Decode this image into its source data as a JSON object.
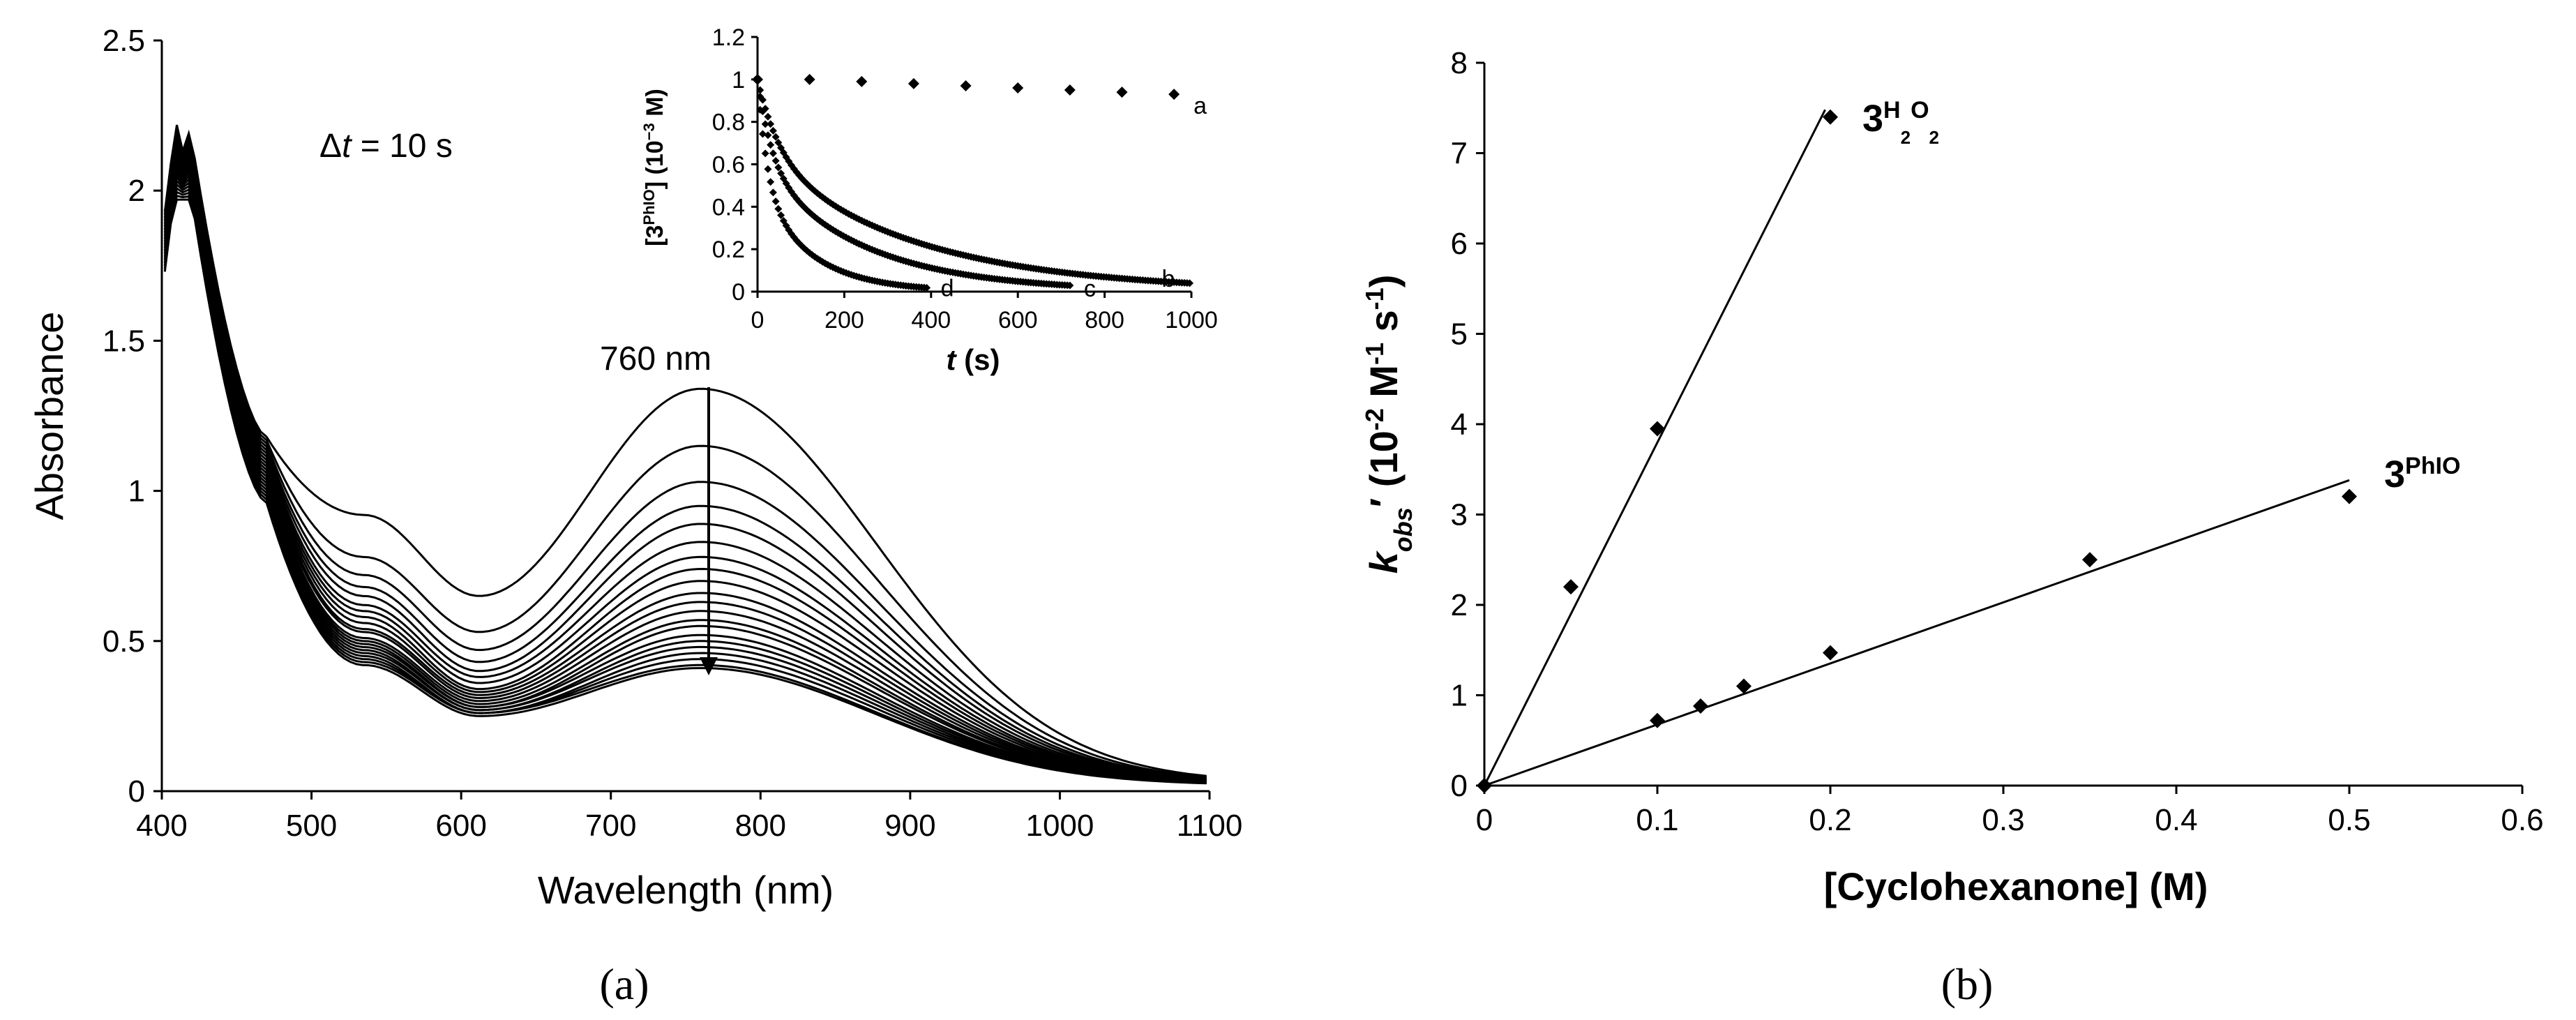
{
  "panel_labels": {
    "a": "(a)",
    "b": "(b)"
  },
  "chart_data": [
    {
      "id": "a-main",
      "type": "line",
      "xlabel": "Wavelength (nm)",
      "ylabel": "Absorbance",
      "xlim": [
        400,
        1100
      ],
      "ylim": [
        0,
        2.5
      ],
      "xticks": [
        400,
        500,
        600,
        700,
        800,
        900,
        1000,
        1100
      ],
      "yticks": [
        0,
        0.5,
        1,
        1.5,
        2,
        2.5
      ],
      "ytick_labels": [
        "0",
        "0.5",
        "1",
        "1.5",
        "2",
        "2.5"
      ],
      "annotations": {
        "dt_prefix": "Δ",
        "dt_italic": "t",
        "dt_suffix": " = 10 s",
        "peak": "760 nm"
      },
      "peak_wavelength": 760,
      "series_peak_values": [
        1.34,
        1.15,
        1.03,
        0.95,
        0.89,
        0.83,
        0.78,
        0.74,
        0.7,
        0.66,
        0.63,
        0.6,
        0.57,
        0.55,
        0.52,
        0.5,
        0.48,
        0.46,
        0.44,
        0.42,
        0.41
      ],
      "series_min_values": [
        0.65,
        0.53,
        0.47,
        0.43,
        0.4,
        0.38,
        0.36,
        0.34,
        0.33,
        0.32,
        0.31,
        0.3,
        0.29,
        0.28,
        0.28,
        0.27,
        0.27,
        0.26,
        0.26,
        0.26,
        0.25
      ],
      "series_shoulder_values": [
        0.92,
        0.78,
        0.72,
        0.68,
        0.65,
        0.62,
        0.6,
        0.58,
        0.56,
        0.54,
        0.53,
        0.51,
        0.5,
        0.49,
        0.48,
        0.47,
        0.46,
        0.45,
        0.44,
        0.43,
        0.42
      ]
    },
    {
      "id": "a-inset",
      "type": "scatter",
      "xlabel_italic": "t",
      "xlabel_rest": " (s)",
      "ylabel_parts": {
        "open": "[3",
        "sup": "PhIO",
        "mid": "] (10",
        "exp": "−3",
        "close": " M)"
      },
      "xlim": [
        0,
        1000
      ],
      "ylim": [
        0,
        1.2
      ],
      "xticks": [
        0,
        200,
        400,
        600,
        800,
        1000
      ],
      "yticks": [
        0,
        0.2,
        0.4,
        0.6,
        0.8,
        1,
        1.2
      ],
      "ytick_labels": [
        "0",
        "0.2",
        "0.4",
        "0.6",
        "0.8",
        "1",
        "1.2"
      ],
      "series": [
        {
          "name": "a",
          "x": [
            0,
            120,
            240,
            360,
            480,
            600,
            720,
            840,
            960
          ],
          "y": [
            1.0,
            1.0,
            0.99,
            0.98,
            0.97,
            0.96,
            0.95,
            0.94,
            0.93
          ]
        },
        {
          "name": "b",
          "tmax": 1000,
          "y0": 1.0,
          "fast": 0.35,
          "kfast": 0.02,
          "slow": 0.65,
          "kslow": 0.0028
        },
        {
          "name": "c",
          "tmax": 720,
          "y0": 1.0,
          "fast": 0.4,
          "kfast": 0.03,
          "slow": 0.6,
          "kslow": 0.0042
        },
        {
          "name": "d",
          "tmax": 390,
          "y0": 1.0,
          "fast": 0.5,
          "kfast": 0.045,
          "slow": 0.5,
          "kslow": 0.0085
        }
      ]
    },
    {
      "id": "b-main",
      "type": "scatter",
      "xlabel": "[Cyclohexanone] (M)",
      "ylabel_parts": {
        "k": "k",
        "sub": "obs",
        "prime": "′",
        "rest": " (10",
        "exp1": "-2",
        "m": " M",
        "exp2": "-1",
        "s": " s",
        "exp3": "-1",
        "close": ")"
      },
      "xlim": [
        0,
        0.6
      ],
      "ylim": [
        0,
        8
      ],
      "xticks": [
        0,
        0.1,
        0.2,
        0.3,
        0.4,
        0.5,
        0.6
      ],
      "xtick_labels": [
        "0",
        "0.1",
        "0.2",
        "0.3",
        "0.4",
        "0.5",
        "0.6"
      ],
      "yticks": [
        0,
        1,
        2,
        3,
        4,
        5,
        6,
        7,
        8
      ],
      "series": [
        {
          "name": "3H2O2",
          "label_main": "3",
          "label_sup": "H",
          "label_sub1": "2",
          "label_sup2": "O",
          "label_sub2": "2",
          "x": [
            0,
            0.05,
            0.1,
            0.2
          ],
          "y": [
            0,
            2.2,
            3.95,
            7.4
          ],
          "fit": {
            "x0": 0,
            "y0": 0,
            "x1": 0.197,
            "y1": 7.48
          }
        },
        {
          "name": "3PhIO",
          "label_main": "3",
          "label_sup": "PhIO",
          "x": [
            0,
            0.1,
            0.125,
            0.15,
            0.2,
            0.35,
            0.5
          ],
          "y": [
            0,
            0.72,
            0.88,
            1.1,
            1.47,
            2.5,
            3.2
          ],
          "fit": {
            "x0": 0,
            "y0": 0,
            "x1": 0.5,
            "y1": 3.38
          }
        }
      ]
    }
  ]
}
